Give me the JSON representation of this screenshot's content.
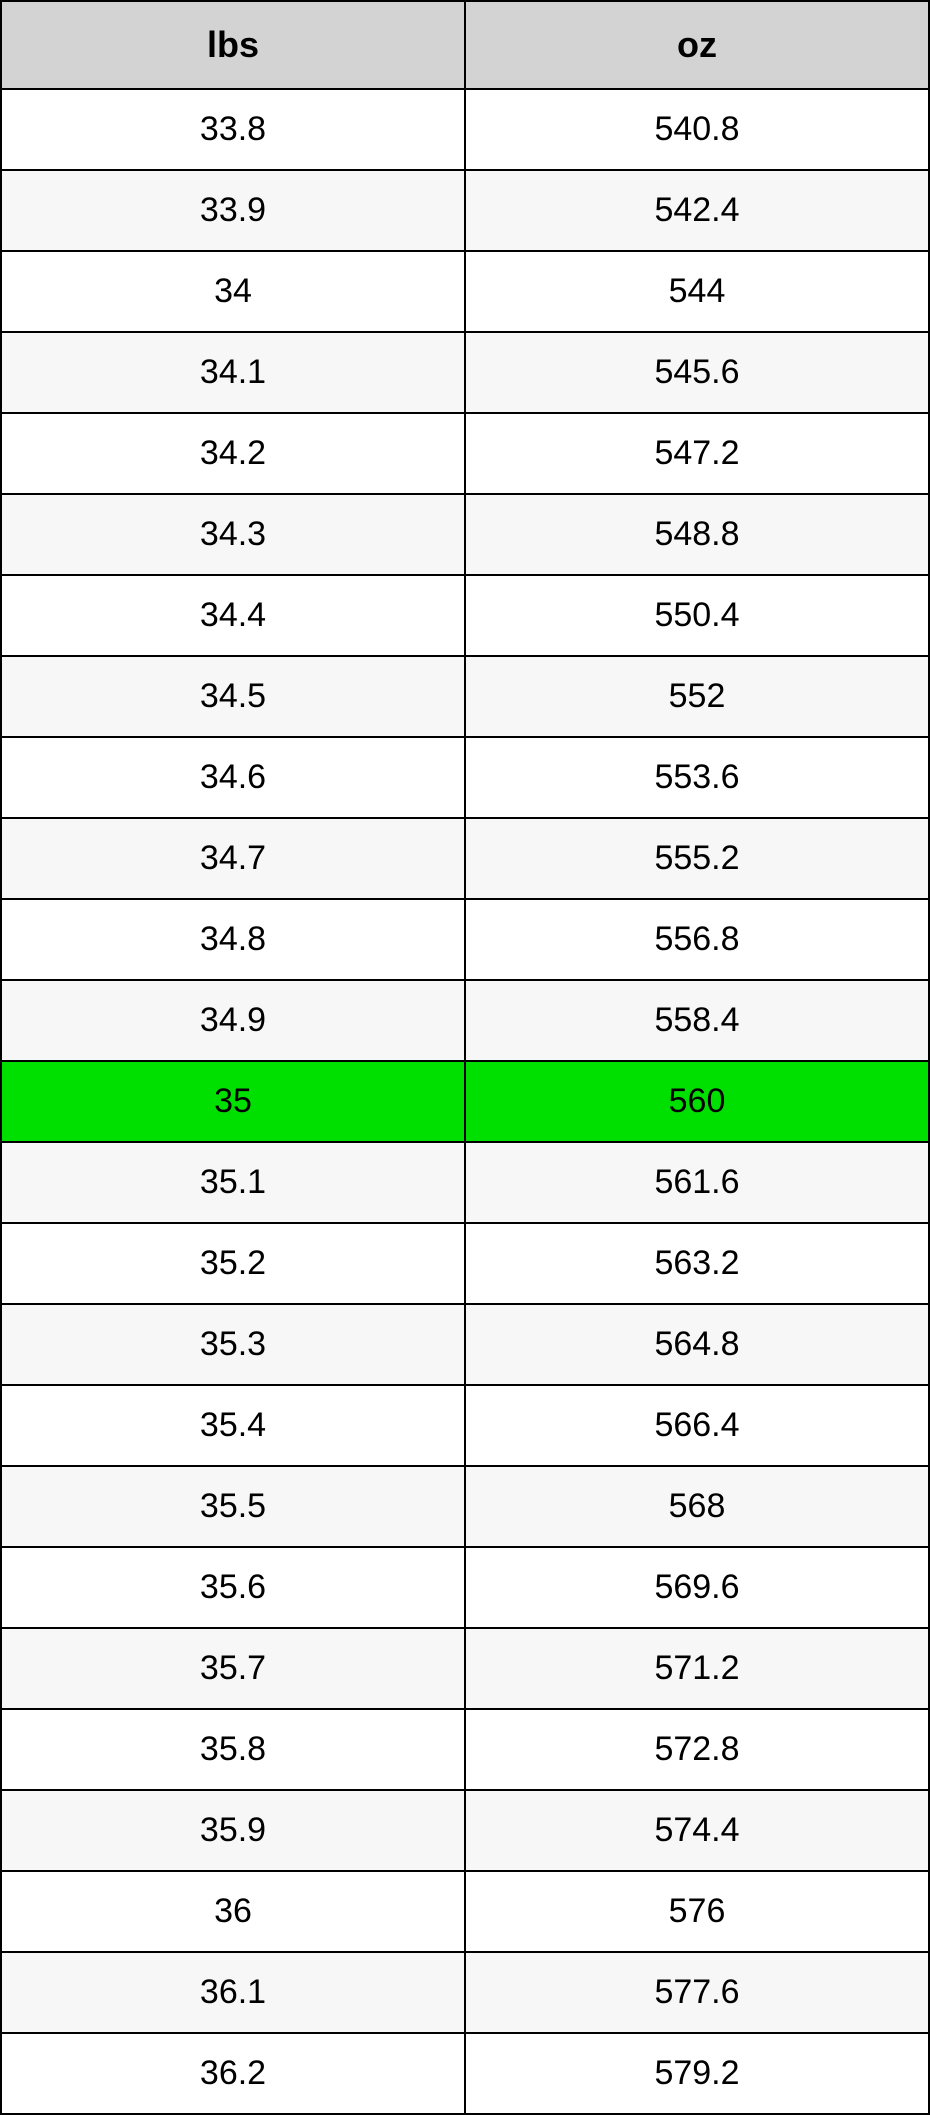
{
  "table": {
    "type": "table",
    "columns": [
      "lbs",
      "oz"
    ],
    "header_background": "#d3d3d3",
    "header_fontsize": 36,
    "header_fontweight": "bold",
    "cell_fontsize": 34,
    "border_color": "#000000",
    "alt_row_colors": [
      "#ffffff",
      "#f7f7f7"
    ],
    "highlight_color": "#00e000",
    "highlight_index": 12,
    "column_widths": [
      "50%",
      "50%"
    ],
    "text_align": "center",
    "rows": [
      [
        "33.8",
        "540.8"
      ],
      [
        "33.9",
        "542.4"
      ],
      [
        "34",
        "544"
      ],
      [
        "34.1",
        "545.6"
      ],
      [
        "34.2",
        "547.2"
      ],
      [
        "34.3",
        "548.8"
      ],
      [
        "34.4",
        "550.4"
      ],
      [
        "34.5",
        "552"
      ],
      [
        "34.6",
        "553.6"
      ],
      [
        "34.7",
        "555.2"
      ],
      [
        "34.8",
        "556.8"
      ],
      [
        "34.9",
        "558.4"
      ],
      [
        "35",
        "560"
      ],
      [
        "35.1",
        "561.6"
      ],
      [
        "35.2",
        "563.2"
      ],
      [
        "35.3",
        "564.8"
      ],
      [
        "35.4",
        "566.4"
      ],
      [
        "35.5",
        "568"
      ],
      [
        "35.6",
        "569.6"
      ],
      [
        "35.7",
        "571.2"
      ],
      [
        "35.8",
        "572.8"
      ],
      [
        "35.9",
        "574.4"
      ],
      [
        "36",
        "576"
      ],
      [
        "36.1",
        "577.6"
      ],
      [
        "36.2",
        "579.2"
      ]
    ]
  }
}
